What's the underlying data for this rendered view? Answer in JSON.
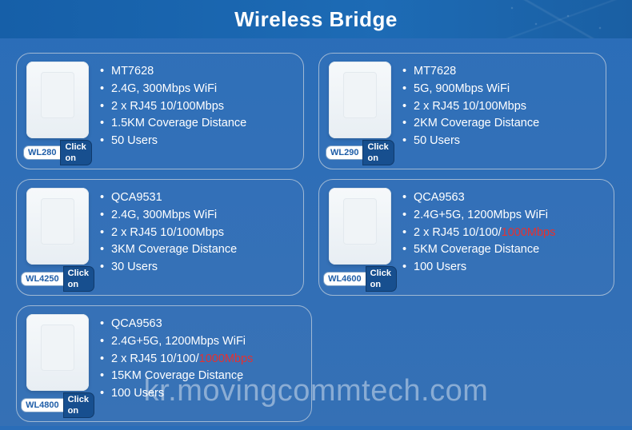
{
  "header": {
    "title": "Wireless Bridge"
  },
  "click_label": "Click on",
  "watermark": "kr.movingcommtech.com",
  "highlight_token": "1000Mbps",
  "products": [
    {
      "model": "WL280",
      "width": "narrow",
      "specs": [
        "MT7628",
        "2.4G, 300Mbps WiFi",
        "2 x RJ45 10/100Mbps",
        "1.5KM Coverage Distance",
        "50 Users"
      ]
    },
    {
      "model": "WL290",
      "width": "narrow",
      "specs": [
        "MT7628",
        "5G, 900Mbps WiFi",
        "2 x RJ45 10/100Mbps",
        "2KM Coverage Distance",
        "50 Users"
      ]
    },
    {
      "model": "WL4250",
      "width": "narrow",
      "specs": [
        "QCA9531",
        "2.4G, 300Mbps WiFi",
        "2 x RJ45 10/100Mbps",
        "3KM Coverage Distance",
        "30 Users"
      ]
    },
    {
      "model": "WL4600",
      "width": "wide",
      "specs": [
        "QCA9563",
        "2.4G+5G, 1200Mbps WiFi",
        "2 x RJ45 10/100/1000Mbps",
        "5KM Coverage Distance",
        "100 Users"
      ]
    },
    {
      "model": "WL4800",
      "width": "wide",
      "specs": [
        "QCA9563",
        "2.4G+5G, 1200Mbps WiFi",
        "2 x RJ45 10/100/1000Mbps",
        "15KM Coverage Distance",
        "100 Users"
      ]
    }
  ]
}
